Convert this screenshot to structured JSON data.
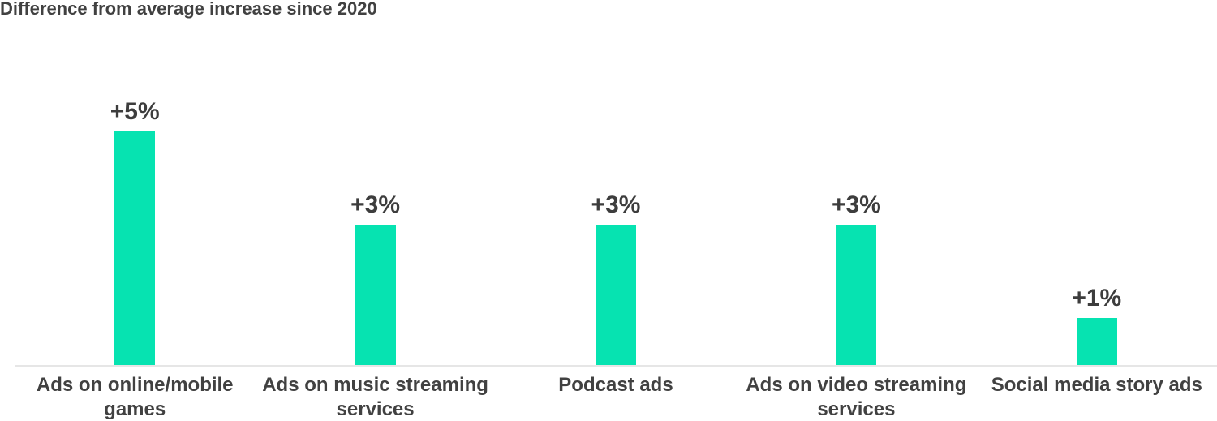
{
  "title": "Difference from average increase since 2020",
  "colors": {
    "bar": "#06e3b1",
    "title_text": "#414141",
    "value_text": "#3d3d3d",
    "category_text": "#414141",
    "axis_line": "#e6e6e6",
    "background": "#ffffff"
  },
  "chart_data": {
    "type": "bar",
    "title": "Difference from average increase since 2020",
    "xlabel": "",
    "ylabel": "",
    "categories": [
      "Ads on online/mobile games",
      "Ads on music streaming services",
      "Podcast ads",
      "Ads on video streaming services",
      "Social media story ads"
    ],
    "values": [
      5,
      3,
      3,
      3,
      1
    ],
    "value_labels": [
      "+5%",
      "+3%",
      "+3%",
      "+3%",
      "+1%"
    ],
    "unit": "percentage points",
    "ylim": [
      0,
      5.5
    ],
    "grid": false,
    "legend": false,
    "bar_color": "#06e3b1",
    "value_label_position": "above-bar",
    "baseline_axis": "x"
  }
}
